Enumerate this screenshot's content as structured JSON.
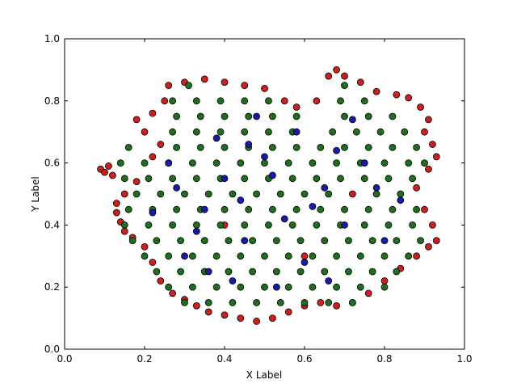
{
  "chart_data": {
    "type": "scatter",
    "x_label": "X Label",
    "y_label": "Y Label",
    "xlim": [
      0,
      1
    ],
    "ylim": [
      0,
      1
    ],
    "xticks": [
      {
        "value": 0,
        "label": "0.0"
      },
      0.2,
      0.4,
      0.6,
      0.8,
      {
        "value": 1,
        "label": "1.0"
      }
    ],
    "yticks": [
      {
        "value": 0,
        "label": "0.0"
      },
      0.2,
      0.4,
      0.6,
      0.8,
      {
        "value": 1,
        "label": "1.0"
      }
    ],
    "grid": false,
    "series": [
      {
        "color": "#cc1f1f",
        "x": [
          0.09,
          0.1,
          0.11,
          0.12,
          0.13,
          0.14,
          0.15,
          0.17,
          0.2,
          0.22,
          0.24,
          0.27,
          0.3,
          0.33,
          0.36,
          0.4,
          0.44,
          0.48,
          0.52,
          0.56,
          0.6,
          0.64,
          0.68,
          0.72,
          0.76,
          0.8,
          0.84,
          0.88,
          0.91,
          0.93,
          0.92,
          0.9,
          0.88,
          0.91,
          0.93,
          0.92,
          0.9,
          0.91,
          0.89,
          0.86,
          0.83,
          0.78,
          0.74,
          0.7,
          0.68,
          0.66,
          0.63,
          0.58,
          0.55,
          0.5,
          0.45,
          0.4,
          0.35,
          0.3,
          0.26,
          0.25,
          0.22,
          0.18,
          0.2,
          0.24,
          0.22,
          0.18,
          0.15,
          0.13,
          0.72,
          0.4,
          0.6
        ],
        "values": [
          0.58,
          0.57,
          0.59,
          0.56,
          0.44,
          0.41,
          0.38,
          0.36,
          0.33,
          0.28,
          0.22,
          0.18,
          0.16,
          0.14,
          0.12,
          0.11,
          0.1,
          0.09,
          0.1,
          0.12,
          0.14,
          0.15,
          0.14,
          0.15,
          0.18,
          0.22,
          0.26,
          0.3,
          0.33,
          0.35,
          0.4,
          0.45,
          0.52,
          0.58,
          0.62,
          0.66,
          0.7,
          0.74,
          0.78,
          0.81,
          0.82,
          0.83,
          0.86,
          0.88,
          0.9,
          0.88,
          0.8,
          0.78,
          0.8,
          0.84,
          0.85,
          0.86,
          0.87,
          0.86,
          0.85,
          0.8,
          0.76,
          0.74,
          0.7,
          0.66,
          0.62,
          0.54,
          0.5,
          0.47,
          0.5,
          0.4,
          0.3
        ]
      },
      {
        "color": "#1f6e1f",
        "x": [
          0.3,
          0.36,
          0.42,
          0.48,
          0.54,
          0.6,
          0.66,
          0.72,
          0.26,
          0.32,
          0.38,
          0.44,
          0.5,
          0.56,
          0.62,
          0.68,
          0.74,
          0.8,
          0.23,
          0.29,
          0.35,
          0.41,
          0.47,
          0.53,
          0.59,
          0.65,
          0.71,
          0.77,
          0.83,
          0.2,
          0.26,
          0.32,
          0.38,
          0.44,
          0.5,
          0.56,
          0.62,
          0.68,
          0.74,
          0.8,
          0.86,
          0.17,
          0.23,
          0.29,
          0.35,
          0.41,
          0.47,
          0.53,
          0.59,
          0.65,
          0.71,
          0.77,
          0.83,
          0.89,
          0.15,
          0.21,
          0.27,
          0.33,
          0.39,
          0.45,
          0.51,
          0.57,
          0.63,
          0.69,
          0.75,
          0.81,
          0.87,
          0.16,
          0.22,
          0.28,
          0.34,
          0.4,
          0.46,
          0.52,
          0.58,
          0.64,
          0.7,
          0.76,
          0.82,
          0.88,
          0.18,
          0.24,
          0.3,
          0.36,
          0.42,
          0.48,
          0.54,
          0.6,
          0.66,
          0.78,
          0.84,
          0.15,
          0.21,
          0.27,
          0.33,
          0.39,
          0.45,
          0.51,
          0.57,
          0.63,
          0.69,
          0.75,
          0.81,
          0.87,
          0.14,
          0.2,
          0.26,
          0.32,
          0.38,
          0.44,
          0.5,
          0.56,
          0.62,
          0.68,
          0.74,
          0.8,
          0.86,
          0.9,
          0.16,
          0.28,
          0.34,
          0.4,
          0.46,
          0.52,
          0.58,
          0.64,
          0.7,
          0.76,
          0.82,
          0.88,
          0.27,
          0.33,
          0.39,
          0.45,
          0.51,
          0.57,
          0.67,
          0.73,
          0.79,
          0.85,
          0.28,
          0.34,
          0.4,
          0.46,
          0.52,
          0.58,
          0.7,
          0.76,
          0.82,
          0.27,
          0.33,
          0.39,
          0.45,
          0.51,
          0.69,
          0.75,
          0.31,
          0.7
        ],
        "values": [
          0.15,
          0.15,
          0.15,
          0.15,
          0.15,
          0.15,
          0.15,
          0.15,
          0.2,
          0.2,
          0.2,
          0.2,
          0.2,
          0.2,
          0.2,
          0.2,
          0.2,
          0.2,
          0.25,
          0.25,
          0.25,
          0.25,
          0.25,
          0.25,
          0.25,
          0.25,
          0.25,
          0.25,
          0.25,
          0.3,
          0.3,
          0.3,
          0.3,
          0.3,
          0.3,
          0.3,
          0.3,
          0.3,
          0.3,
          0.3,
          0.3,
          0.35,
          0.35,
          0.35,
          0.35,
          0.35,
          0.35,
          0.35,
          0.35,
          0.35,
          0.35,
          0.35,
          0.35,
          0.35,
          0.4,
          0.4,
          0.4,
          0.4,
          0.4,
          0.4,
          0.4,
          0.4,
          0.4,
          0.4,
          0.4,
          0.4,
          0.4,
          0.45,
          0.45,
          0.45,
          0.45,
          0.45,
          0.45,
          0.45,
          0.45,
          0.45,
          0.45,
          0.45,
          0.45,
          0.45,
          0.5,
          0.5,
          0.5,
          0.5,
          0.5,
          0.5,
          0.5,
          0.5,
          0.5,
          0.5,
          0.5,
          0.55,
          0.55,
          0.55,
          0.55,
          0.55,
          0.55,
          0.55,
          0.55,
          0.55,
          0.55,
          0.55,
          0.55,
          0.55,
          0.6,
          0.6,
          0.6,
          0.6,
          0.6,
          0.6,
          0.6,
          0.6,
          0.6,
          0.6,
          0.6,
          0.6,
          0.6,
          0.6,
          0.65,
          0.65,
          0.65,
          0.65,
          0.65,
          0.65,
          0.65,
          0.65,
          0.65,
          0.65,
          0.65,
          0.65,
          0.7,
          0.7,
          0.7,
          0.7,
          0.7,
          0.7,
          0.7,
          0.7,
          0.7,
          0.7,
          0.75,
          0.75,
          0.75,
          0.75,
          0.75,
          0.75,
          0.75,
          0.75,
          0.75,
          0.8,
          0.8,
          0.8,
          0.8,
          0.8,
          0.8,
          0.8,
          0.85,
          0.85
        ]
      },
      {
        "color": "#1a1aa8",
        "x": [
          0.3,
          0.35,
          0.4,
          0.45,
          0.5,
          0.55,
          0.6,
          0.65,
          0.7,
          0.75,
          0.8,
          0.48,
          0.38,
          0.28,
          0.22,
          0.58,
          0.72,
          0.84,
          0.42,
          0.53,
          0.66,
          0.33,
          0.44,
          0.62,
          0.78,
          0.36,
          0.52,
          0.68,
          0.26,
          0.46
        ],
        "values": [
          0.3,
          0.45,
          0.55,
          0.35,
          0.62,
          0.42,
          0.28,
          0.52,
          0.4,
          0.6,
          0.35,
          0.75,
          0.68,
          0.52,
          0.44,
          0.7,
          0.74,
          0.48,
          0.22,
          0.2,
          0.22,
          0.38,
          0.48,
          0.46,
          0.52,
          0.25,
          0.56,
          0.64,
          0.6,
          0.66
        ]
      }
    ]
  }
}
